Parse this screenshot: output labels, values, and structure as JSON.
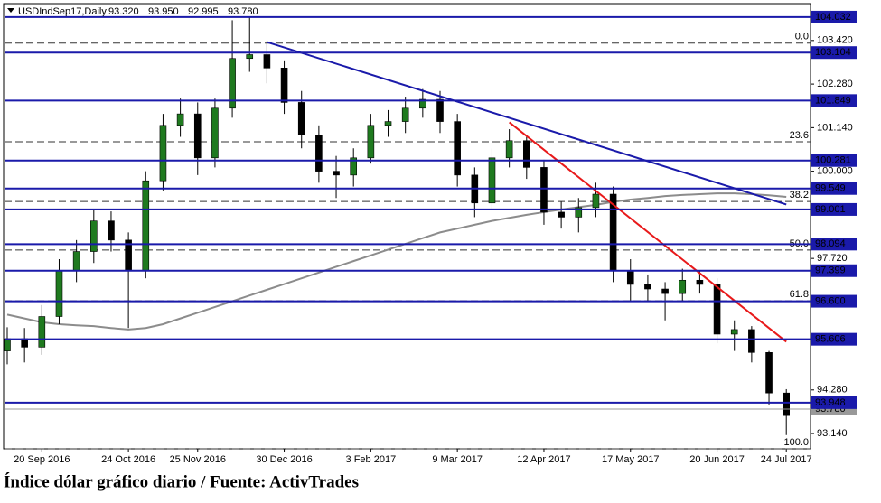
{
  "chart_data": {
    "type": "candlestick",
    "header": {
      "symbol": "USDIndSep17,Daily",
      "ohlc": [
        {
          "value": 93.32,
          "label": "93.320"
        },
        {
          "value": 93.95,
          "label": "93.950"
        },
        {
          "value": 92.995,
          "label": "92.995"
        },
        {
          "value": 93.78,
          "label": "93.780"
        }
      ]
    },
    "caption": "Índice dólar gráfico diario / Fuente: ActivTrades",
    "categories": [
      null,
      null,
      "20 Sep 2016",
      null,
      null,
      null,
      null,
      "24 Oct 2016",
      null,
      null,
      null,
      "25 Nov 2016",
      null,
      null,
      null,
      null,
      "30 Dec 2016",
      null,
      null,
      null,
      null,
      "3 Feb 2017",
      null,
      null,
      null,
      null,
      "9 Mar 2017",
      null,
      null,
      null,
      null,
      "12 Apr 2017",
      null,
      null,
      null,
      null,
      "17 May 2017",
      null,
      null,
      null,
      null,
      "20 Jun 2017",
      null,
      null,
      null,
      "24 Jul 2017"
    ],
    "ohlc": {
      "up_color": "#1f7a1f",
      "down_color": "#000000",
      "open": [
        95.3,
        95.62,
        95.4,
        96.2,
        97.4,
        97.9,
        98.7,
        98.2,
        97.4,
        99.75,
        101.2,
        101.5,
        100.35,
        101.65,
        102.95,
        103.05,
        102.7,
        101.8,
        100.95,
        100.0,
        99.9,
        100.35,
        101.2,
        101.3,
        101.65,
        101.88,
        101.3,
        99.9,
        99.17,
        100.35,
        100.8,
        100.1,
        98.93,
        98.8,
        99.05,
        99.4,
        97.4,
        97.04,
        96.92,
        96.8,
        97.15,
        97.04,
        95.74,
        95.86,
        95.26,
        94.2
      ],
      "high": [
        95.92,
        95.9,
        96.5,
        97.7,
        98.2,
        99.0,
        98.95,
        98.4,
        100.0,
        101.5,
        101.9,
        101.8,
        101.9,
        103.95,
        104.03,
        103.4,
        102.9,
        102.1,
        101.2,
        100.4,
        100.6,
        101.5,
        101.6,
        101.95,
        102.15,
        102.1,
        101.5,
        100.1,
        100.6,
        101.1,
        100.9,
        100.3,
        99.2,
        99.3,
        99.7,
        99.6,
        97.7,
        97.3,
        97.1,
        97.45,
        97.4,
        97.2,
        96.1,
        95.95,
        95.3,
        94.3
      ],
      "low": [
        94.95,
        95.0,
        95.2,
        96.0,
        97.1,
        97.6,
        97.9,
        95.9,
        97.2,
        99.5,
        100.9,
        99.9,
        100.1,
        101.4,
        102.6,
        102.3,
        101.5,
        100.6,
        99.7,
        99.3,
        99.6,
        100.2,
        100.9,
        101.0,
        101.4,
        101.0,
        99.6,
        98.8,
        99.0,
        100.1,
        99.8,
        98.6,
        98.5,
        98.4,
        98.8,
        97.1,
        96.6,
        96.6,
        96.1,
        96.6,
        96.8,
        95.5,
        95.3,
        95.0,
        93.9,
        93.1
      ],
      "close": [
        95.62,
        95.4,
        96.2,
        97.4,
        97.9,
        98.7,
        98.2,
        97.4,
        99.75,
        101.2,
        101.5,
        100.35,
        101.65,
        102.95,
        103.05,
        102.7,
        101.8,
        100.95,
        100.0,
        99.9,
        100.35,
        101.2,
        101.3,
        101.65,
        101.88,
        101.3,
        99.9,
        99.17,
        100.35,
        100.8,
        100.1,
        98.93,
        98.8,
        99.05,
        99.4,
        97.4,
        97.04,
        96.92,
        96.8,
        97.15,
        97.04,
        95.74,
        95.86,
        95.26,
        94.2,
        93.61
      ]
    },
    "moving_average": {
      "color": "#8c8c8c",
      "values": [
        96.25,
        96.15,
        96.05,
        96.0,
        95.97,
        95.95,
        95.9,
        95.86,
        95.9,
        96.0,
        96.15,
        96.3,
        96.45,
        96.6,
        96.75,
        96.9,
        97.05,
        97.2,
        97.35,
        97.5,
        97.65,
        97.8,
        97.95,
        98.1,
        98.25,
        98.4,
        98.5,
        98.6,
        98.7,
        98.78,
        98.86,
        98.93,
        99.0,
        99.06,
        99.12,
        99.2,
        99.26,
        99.3,
        99.35,
        99.38,
        99.4,
        99.42,
        99.42,
        99.4,
        99.37,
        99.33
      ]
    },
    "trendlines": [
      {
        "color": "#1a1aaa",
        "points": [
          {
            "index": 15,
            "value": 103.38
          },
          {
            "index": 45,
            "value": 99.13
          }
        ]
      },
      {
        "color": "#e8191a",
        "points": [
          {
            "index": 29,
            "value": 101.28
          },
          {
            "index": 45,
            "value": 95.54
          }
        ]
      }
    ],
    "levels": {
      "color": "#1a1aaa",
      "values": [
        104.032,
        103.104,
        101.849,
        100.281,
        99.549,
        99.001,
        98.094,
        97.399,
        {
          "value": 96.6,
          "label": "96.600"
        },
        95.606,
        93.948
      ]
    },
    "fibonacci": [
      {
        "label": "0.0",
        "value": 103.35
      },
      {
        "label": "23.6",
        "value": 100.77
      },
      {
        "label": "38.2",
        "value": 99.21
      },
      {
        "label": "50.0",
        "value": 97.94
      },
      {
        "label": "61.8",
        "value": 96.61
      },
      {
        "label": "100.0",
        "value": 92.74
      }
    ],
    "last_price": {
      "value": 93.78,
      "label": "93.780"
    },
    "ylim": [
      92.74,
      104.29
    ],
    "yticks": [
      {
        "value": 93.14,
        "label": "93.140"
      },
      {
        "value": 94.28,
        "label": "94.280"
      },
      {
        "value": 97.72,
        "label": "97.720"
      },
      {
        "value": 100.0,
        "label": "100.000"
      },
      {
        "value": 101.14,
        "label": "101.140"
      },
      {
        "value": 102.28,
        "label": "102.280"
      },
      {
        "value": 103.42,
        "label": "103.420"
      }
    ]
  }
}
